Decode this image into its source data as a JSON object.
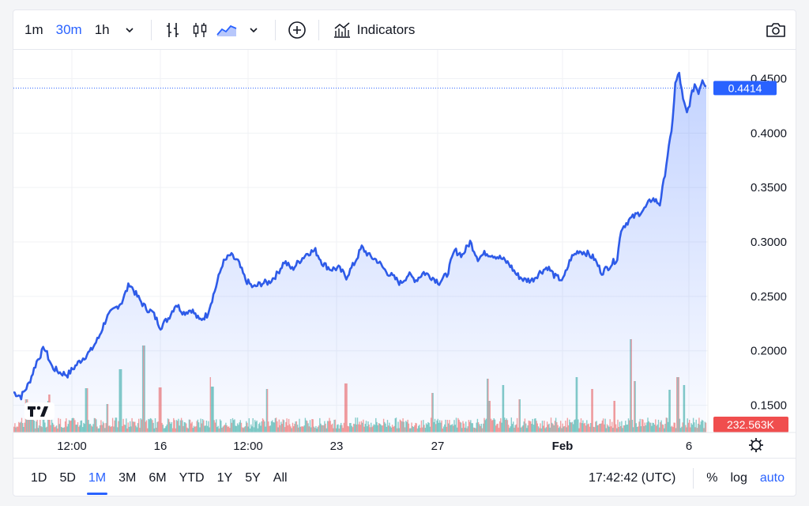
{
  "toolbar": {
    "intervals": [
      {
        "label": "1m",
        "active": false
      },
      {
        "label": "30m",
        "active": true
      },
      {
        "label": "1h",
        "active": false
      }
    ],
    "indicators_label": "Indicators"
  },
  "chart_data": {
    "type": "area",
    "price_axis": {
      "ticks": [
        "0.1500",
        "0.2000",
        "0.2500",
        "0.3000",
        "0.3500",
        "0.4000",
        "0.4500"
      ],
      "range": [
        0.125,
        0.4765
      ]
    },
    "time_axis": {
      "ticks": [
        "12:00",
        "16",
        "12:00",
        "23",
        "27",
        "Feb",
        "6"
      ]
    },
    "last_price_label": "0.4414",
    "last_price": 0.4414,
    "volume_label": "232.563K",
    "series_keypoints": [
      [
        0,
        0.162
      ],
      [
        2,
        0.158
      ],
      [
        4,
        0.17
      ],
      [
        6,
        0.19
      ],
      [
        8,
        0.203
      ],
      [
        10,
        0.185
      ],
      [
        12,
        0.18
      ],
      [
        14,
        0.178
      ],
      [
        17,
        0.19
      ],
      [
        20,
        0.2
      ],
      [
        22,
        0.212
      ],
      [
        24,
        0.23
      ],
      [
        26,
        0.238
      ],
      [
        28,
        0.245
      ],
      [
        30,
        0.262
      ],
      [
        32,
        0.25
      ],
      [
        34,
        0.24
      ],
      [
        36,
        0.235
      ],
      [
        38,
        0.222
      ],
      [
        40,
        0.23
      ],
      [
        42,
        0.243
      ],
      [
        44,
        0.235
      ],
      [
        46,
        0.238
      ],
      [
        48,
        0.228
      ],
      [
        50,
        0.233
      ],
      [
        52,
        0.255
      ],
      [
        54,
        0.28
      ],
      [
        56,
        0.288
      ],
      [
        58,
        0.282
      ],
      [
        60,
        0.265
      ],
      [
        62,
        0.258
      ],
      [
        64,
        0.262
      ],
      [
        66,
        0.263
      ],
      [
        68,
        0.27
      ],
      [
        70,
        0.282
      ],
      [
        72,
        0.275
      ],
      [
        74,
        0.283
      ],
      [
        76,
        0.29
      ],
      [
        78,
        0.292
      ],
      [
        80,
        0.28
      ],
      [
        82,
        0.275
      ],
      [
        84,
        0.276
      ],
      [
        86,
        0.268
      ],
      [
        88,
        0.28
      ],
      [
        90,
        0.295
      ],
      [
        92,
        0.287
      ],
      [
        94,
        0.283
      ],
      [
        96,
        0.274
      ],
      [
        98,
        0.268
      ],
      [
        100,
        0.262
      ],
      [
        102,
        0.27
      ],
      [
        104,
        0.265
      ],
      [
        106,
        0.272
      ],
      [
        108,
        0.268
      ],
      [
        110,
        0.263
      ],
      [
        112,
        0.27
      ],
      [
        114,
        0.292
      ],
      [
        116,
        0.288
      ],
      [
        118,
        0.3
      ],
      [
        120,
        0.285
      ],
      [
        122,
        0.29
      ],
      [
        124,
        0.288
      ],
      [
        126,
        0.285
      ],
      [
        128,
        0.28
      ],
      [
        130,
        0.27
      ],
      [
        132,
        0.265
      ],
      [
        134,
        0.265
      ],
      [
        136,
        0.272
      ],
      [
        138,
        0.277
      ],
      [
        140,
        0.268
      ],
      [
        142,
        0.265
      ],
      [
        144,
        0.285
      ],
      [
        146,
        0.292
      ],
      [
        148,
        0.29
      ],
      [
        150,
        0.285
      ],
      [
        152,
        0.272
      ],
      [
        154,
        0.278
      ],
      [
        156,
        0.285
      ],
      [
        157,
        0.312
      ],
      [
        159,
        0.32
      ],
      [
        161,
        0.325
      ],
      [
        163,
        0.33
      ],
      [
        165,
        0.34
      ],
      [
        167,
        0.335
      ],
      [
        168,
        0.355
      ],
      [
        169,
        0.38
      ],
      [
        170,
        0.4
      ],
      [
        171,
        0.445
      ],
      [
        172,
        0.455
      ],
      [
        173,
        0.43
      ],
      [
        174,
        0.418
      ],
      [
        175,
        0.432
      ],
      [
        176,
        0.445
      ],
      [
        177,
        0.438
      ],
      [
        178,
        0.45
      ],
      [
        179,
        0.443
      ]
    ],
    "volume_bars": 179
  },
  "bottombar": {
    "ranges": [
      {
        "label": "1D",
        "active": false
      },
      {
        "label": "5D",
        "active": false
      },
      {
        "label": "1M",
        "active": true
      },
      {
        "label": "3M",
        "active": false
      },
      {
        "label": "6M",
        "active": false
      },
      {
        "label": "YTD",
        "active": false
      },
      {
        "label": "1Y",
        "active": false
      },
      {
        "label": "5Y",
        "active": false
      },
      {
        "label": "All",
        "active": false
      }
    ],
    "clock": "17:42:42 (UTC)",
    "percent_label": "%",
    "log_label": "log",
    "auto_label": "auto"
  },
  "colors": {
    "accent": "#2962ff",
    "line": "#2e5be8",
    "vol_up": "#26a69a",
    "vol_down": "#ef5350",
    "volume_badge": "#f04e4e"
  }
}
